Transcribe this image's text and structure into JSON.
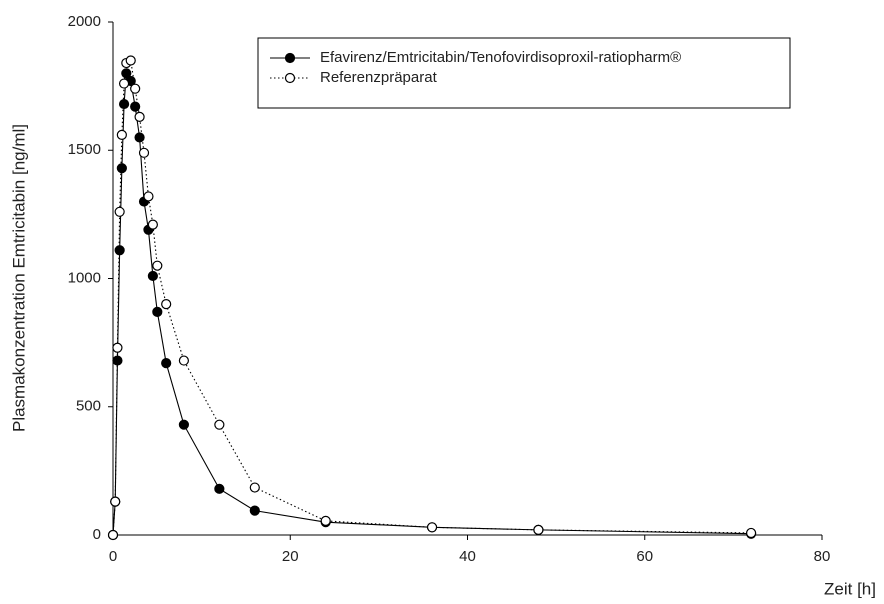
{
  "chart_data": {
    "type": "line",
    "xlabel": "Zeit [h]",
    "ylabel": "Plasmakonzentration Emtricitabin [ng/ml]",
    "x": [
      0,
      0.25,
      0.5,
      0.75,
      1,
      1.25,
      1.5,
      2,
      2.5,
      3,
      3.5,
      4,
      4.5,
      5,
      6,
      8,
      12,
      16,
      24,
      36,
      48,
      72
    ],
    "series": [
      {
        "name": "Efavirenz/Emtricitabin/Tenofovirdisoproxil-ratiopharm®",
        "color": "#000000",
        "marker": "filled",
        "linestyle": "solid",
        "values": [
          0,
          130,
          680,
          1110,
          1430,
          1680,
          1800,
          1770,
          1670,
          1550,
          1300,
          1190,
          1010,
          870,
          670,
          430,
          180,
          95,
          50,
          30,
          20,
          5
        ]
      },
      {
        "name": "Referenzpräparat",
        "color": "#000000",
        "marker": "open",
        "linestyle": "dotted",
        "values": [
          0,
          130,
          730,
          1260,
          1560,
          1760,
          1840,
          1850,
          1740,
          1630,
          1490,
          1320,
          1210,
          1050,
          900,
          680,
          430,
          185,
          55,
          30,
          20,
          8
        ]
      }
    ],
    "xlim": [
      0,
      80
    ],
    "xticks": [
      0,
      20,
      40,
      60,
      80
    ],
    "ylim": [
      0,
      2000
    ],
    "yticks": [
      0,
      500,
      1000,
      1500,
      2000
    ],
    "legend": "upper right"
  }
}
